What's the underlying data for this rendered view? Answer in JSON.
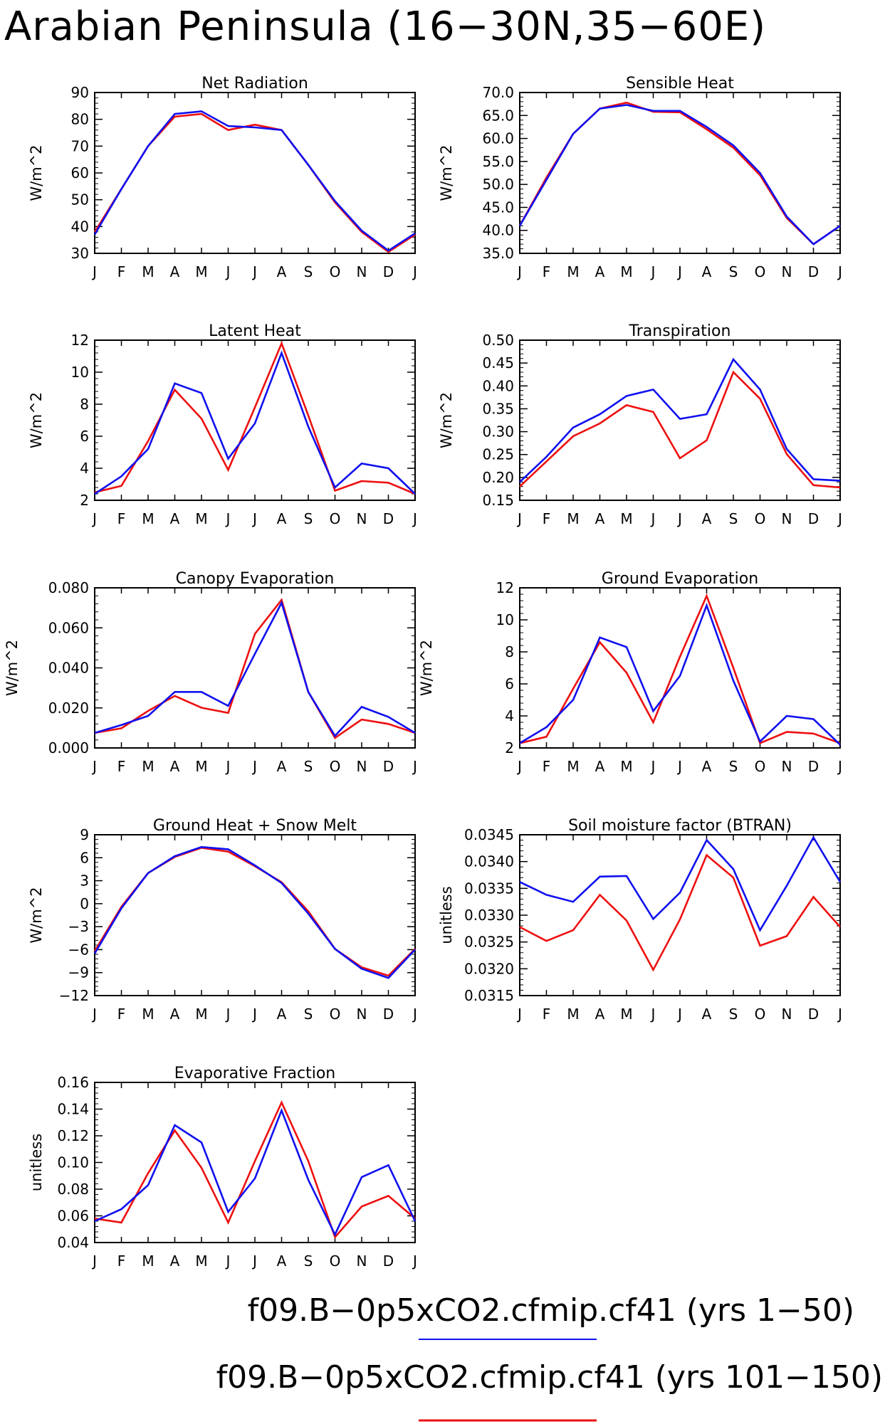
{
  "page_title": "Arabian Peninsula (16−30N,35−60E)",
  "colors": {
    "series_a": "#1010f0",
    "series_b": "#ee1010",
    "axis": "#000000"
  },
  "legend": [
    {
      "label": "f09.B−0p5xCO2.cfmip.cf41 (yrs 1−50)",
      "color": "#1010f0"
    },
    {
      "label": "f09.B−0p5xCO2.cfmip.cf41 (yrs 101−150)",
      "color": "#ee1010"
    }
  ],
  "chart_data": [
    {
      "type": "line",
      "title": "Net Radiation",
      "ylabel": "W/m^2",
      "x": [
        "J",
        "F",
        "M",
        "A",
        "M",
        "J",
        "J",
        "A",
        "S",
        "O",
        "N",
        "D",
        "J"
      ],
      "ylim": [
        30,
        90
      ],
      "yticks": [
        30,
        40,
        50,
        60,
        70,
        80,
        90
      ],
      "ytick_labels": [
        "30",
        "40",
        "50",
        "60",
        "70",
        "80",
        "90"
      ],
      "grid": false,
      "series": [
        {
          "color": "#ee1010",
          "values": [
            38,
            54,
            70,
            81,
            82,
            76,
            78,
            76,
            63,
            49,
            38,
            30.5,
            37
          ]
        },
        {
          "color": "#1010f0",
          "values": [
            37,
            54,
            70,
            82,
            83,
            77.5,
            77,
            76,
            63,
            49.5,
            38.5,
            31,
            37.5
          ]
        }
      ]
    },
    {
      "type": "line",
      "title": "Sensible Heat",
      "ylabel": "W/m^2",
      "x": [
        "J",
        "F",
        "M",
        "A",
        "M",
        "J",
        "J",
        "A",
        "S",
        "O",
        "N",
        "D",
        "J"
      ],
      "ylim": [
        35,
        70
      ],
      "yticks": [
        35,
        40,
        45,
        50,
        55,
        60,
        65,
        70
      ],
      "ytick_labels": [
        "35.0",
        "40.0",
        "45.0",
        "50.0",
        "55.0",
        "60.0",
        "65.0",
        "70.0"
      ],
      "grid": false,
      "series": [
        {
          "color": "#ee1010",
          "values": [
            41,
            51.5,
            61,
            66.5,
            67.8,
            65.8,
            65.7,
            62,
            58,
            52,
            42.7,
            37,
            41
          ]
        },
        {
          "color": "#1010f0",
          "values": [
            41,
            51,
            61,
            66.5,
            67.3,
            66,
            66,
            62.5,
            58.5,
            52.5,
            43,
            37,
            41
          ]
        }
      ]
    },
    {
      "type": "line",
      "title": "Latent Heat",
      "ylabel": "W/m^2",
      "x": [
        "J",
        "F",
        "M",
        "A",
        "M",
        "J",
        "J",
        "A",
        "S",
        "O",
        "N",
        "D",
        "J"
      ],
      "ylim": [
        2,
        12
      ],
      "yticks": [
        2,
        4,
        6,
        8,
        10,
        12
      ],
      "ytick_labels": [
        "2",
        "4",
        "6",
        "8",
        "10",
        "12"
      ],
      "grid": false,
      "series": [
        {
          "color": "#ee1010",
          "values": [
            2.5,
            2.9,
            5.7,
            8.9,
            7.1,
            3.9,
            7.8,
            11.8,
            7.3,
            2.6,
            3.2,
            3.1,
            2.4
          ]
        },
        {
          "color": "#1010f0",
          "values": [
            2.4,
            3.5,
            5.2,
            9.3,
            8.7,
            4.6,
            6.8,
            11.2,
            6.6,
            2.8,
            4.3,
            4.0,
            2.4
          ]
        }
      ]
    },
    {
      "type": "line",
      "title": "Transpiration",
      "ylabel": "W/m^2",
      "x": [
        "J",
        "F",
        "M",
        "A",
        "M",
        "J",
        "J",
        "A",
        "S",
        "O",
        "N",
        "D",
        "J"
      ],
      "ylim": [
        0.15,
        0.5
      ],
      "yticks": [
        0.15,
        0.2,
        0.25,
        0.3,
        0.35,
        0.4,
        0.45,
        0.5
      ],
      "ytick_labels": [
        "0.15",
        "0.20",
        "0.25",
        "0.30",
        "0.35",
        "0.40",
        "0.45",
        "0.50"
      ],
      "grid": false,
      "series": [
        {
          "color": "#ee1010",
          "values": [
            0.18,
            0.235,
            0.29,
            0.318,
            0.358,
            0.343,
            0.242,
            0.281,
            0.43,
            0.372,
            0.251,
            0.183,
            0.178
          ]
        },
        {
          "color": "#1010f0",
          "values": [
            0.19,
            0.245,
            0.309,
            0.338,
            0.378,
            0.392,
            0.328,
            0.338,
            0.458,
            0.392,
            0.262,
            0.196,
            0.193
          ]
        }
      ]
    },
    {
      "type": "line",
      "title": "Canopy Evaporation",
      "ylabel": "W/m^2",
      "x": [
        "J",
        "F",
        "M",
        "A",
        "M",
        "J",
        "J",
        "A",
        "S",
        "O",
        "N",
        "D",
        "J"
      ],
      "ylim": [
        0,
        0.08
      ],
      "yticks": [
        0,
        0.02,
        0.04,
        0.06,
        0.08
      ],
      "ytick_labels": [
        "0.000",
        "0.020",
        "0.040",
        "0.060",
        "0.080"
      ],
      "grid": false,
      "series": [
        {
          "color": "#ee1010",
          "values": [
            0.0075,
            0.0098,
            0.0185,
            0.026,
            0.0201,
            0.0175,
            0.057,
            0.074,
            0.028,
            0.005,
            0.0142,
            0.012,
            0.0075
          ]
        },
        {
          "color": "#1010f0",
          "values": [
            0.0075,
            0.0115,
            0.016,
            0.028,
            0.028,
            0.021,
            0.047,
            0.0725,
            0.028,
            0.006,
            0.0205,
            0.0155,
            0.0075
          ]
        }
      ]
    },
    {
      "type": "line",
      "title": "Ground Evaporation",
      "ylabel": "W/m^2",
      "x": [
        "J",
        "F",
        "M",
        "A",
        "M",
        "J",
        "J",
        "A",
        "S",
        "O",
        "N",
        "D",
        "J"
      ],
      "ylim": [
        2,
        12
      ],
      "yticks": [
        2,
        4,
        6,
        8,
        10,
        12
      ],
      "ytick_labels": [
        "2",
        "4",
        "6",
        "8",
        "10",
        "12"
      ],
      "grid": false,
      "series": [
        {
          "color": "#ee1010",
          "values": [
            2.3,
            2.7,
            5.7,
            8.6,
            6.7,
            3.6,
            7.7,
            11.5,
            7.0,
            2.3,
            3.0,
            2.9,
            2.3
          ]
        },
        {
          "color": "#1010f0",
          "values": [
            2.3,
            3.3,
            5.0,
            8.9,
            8.3,
            4.3,
            6.5,
            10.9,
            6.2,
            2.4,
            4.0,
            3.8,
            2.2
          ]
        }
      ]
    },
    {
      "type": "line",
      "title": "Ground Heat + Snow Melt",
      "ylabel": "W/m^2",
      "x": [
        "J",
        "F",
        "M",
        "A",
        "M",
        "J",
        "J",
        "A",
        "S",
        "O",
        "N",
        "D",
        "J"
      ],
      "ylim": [
        -12,
        9
      ],
      "yticks": [
        -12,
        -9,
        -6,
        -3,
        0,
        3,
        6,
        9
      ],
      "ytick_labels": [
        "−12",
        "−9",
        "−6",
        "−3",
        "0",
        "3",
        "6",
        "9"
      ],
      "grid": false,
      "series": [
        {
          "color": "#ee1010",
          "values": [
            -6.2,
            -0.4,
            4.0,
            6.1,
            7.3,
            6.8,
            4.9,
            2.8,
            -1.0,
            -5.9,
            -8.3,
            -9.4,
            -5.9
          ]
        },
        {
          "color": "#1010f0",
          "values": [
            -6.5,
            -0.6,
            4.0,
            6.2,
            7.4,
            7.1,
            5.0,
            2.7,
            -1.3,
            -5.9,
            -8.5,
            -9.7,
            -6.0
          ]
        }
      ]
    },
    {
      "type": "line",
      "title": "Soil moisture factor (BTRAN)",
      "ylabel": "unitless",
      "x": [
        "J",
        "F",
        "M",
        "A",
        "M",
        "J",
        "J",
        "A",
        "S",
        "O",
        "N",
        "D",
        "J"
      ],
      "ylim": [
        0.0315,
        0.0345
      ],
      "yticks": [
        0.0315,
        0.032,
        0.0325,
        0.033,
        0.0335,
        0.034,
        0.0345
      ],
      "ytick_labels": [
        "0.0315",
        "0.0320",
        "0.0325",
        "0.0330",
        "0.0335",
        "0.0340",
        "0.0345"
      ],
      "grid": false,
      "series": [
        {
          "color": "#ee1010",
          "values": [
            0.03278,
            0.03252,
            0.03272,
            0.03338,
            0.0329,
            0.03198,
            0.03292,
            0.03412,
            0.0337,
            0.03243,
            0.03261,
            0.03334,
            0.03278
          ]
        },
        {
          "color": "#1010f0",
          "values": [
            0.03362,
            0.03338,
            0.03325,
            0.03372,
            0.03373,
            0.03293,
            0.03342,
            0.0344,
            0.03386,
            0.03272,
            0.03355,
            0.03445,
            0.03362
          ]
        }
      ]
    },
    {
      "type": "line",
      "title": "Evaporative Fraction",
      "ylabel": "unitless",
      "x": [
        "J",
        "F",
        "M",
        "A",
        "M",
        "J",
        "J",
        "A",
        "S",
        "O",
        "N",
        "D",
        "J"
      ],
      "ylim": [
        0.04,
        0.16
      ],
      "yticks": [
        0.04,
        0.06,
        0.08,
        0.1,
        0.12,
        0.14,
        0.16
      ],
      "ytick_labels": [
        "0.04",
        "0.06",
        "0.08",
        "0.10",
        "0.12",
        "0.14",
        "0.16"
      ],
      "grid": false,
      "series": [
        {
          "color": "#ee1010",
          "values": [
            0.058,
            0.055,
            0.092,
            0.124,
            0.096,
            0.055,
            0.101,
            0.145,
            0.101,
            0.044,
            0.067,
            0.075,
            0.058
          ]
        },
        {
          "color": "#1010f0",
          "values": [
            0.056,
            0.065,
            0.083,
            0.128,
            0.115,
            0.063,
            0.088,
            0.139,
            0.087,
            0.046,
            0.089,
            0.098,
            0.056
          ]
        }
      ]
    }
  ]
}
